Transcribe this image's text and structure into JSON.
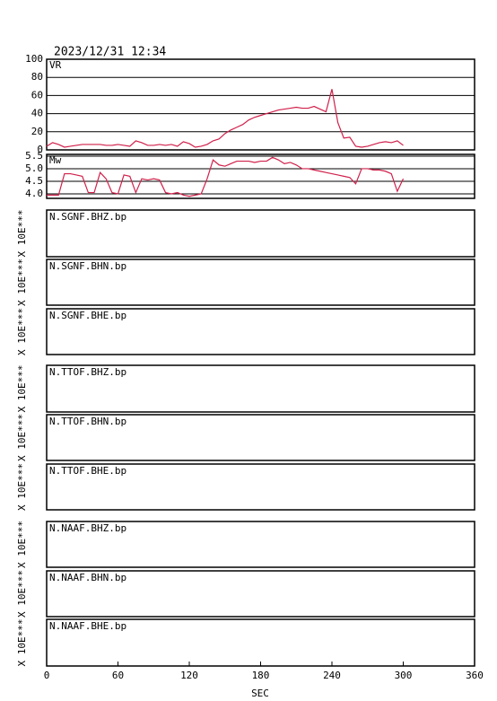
{
  "timestamp": "2023/12/31  12:34",
  "chart_data": [
    {
      "type": "line",
      "ylabel": "VR",
      "color": "#d0204a",
      "grid": true,
      "ylim": [
        0,
        100
      ],
      "yticks": [
        0,
        20,
        40,
        60,
        80,
        100
      ],
      "x": [
        0,
        5,
        10,
        15,
        20,
        25,
        30,
        35,
        40,
        45,
        50,
        55,
        60,
        65,
        70,
        75,
        80,
        85,
        90,
        95,
        100,
        105,
        110,
        115,
        120,
        125,
        130,
        135,
        140,
        145,
        150,
        155,
        160,
        165,
        170,
        175,
        180,
        185,
        190,
        195,
        200,
        205,
        210,
        215,
        220,
        225,
        230,
        235,
        240,
        245,
        250,
        255,
        260,
        265,
        270,
        275,
        280,
        285,
        290,
        295,
        300
      ],
      "values": [
        4,
        8,
        6,
        3,
        4,
        5,
        6,
        6,
        6,
        6,
        5,
        5,
        6,
        5,
        4,
        10,
        8,
        5,
        5,
        6,
        5,
        6,
        4,
        9,
        7,
        3,
        4,
        6,
        10,
        12,
        18,
        22,
        25,
        28,
        33,
        36,
        38,
        40,
        42,
        44,
        45,
        46,
        47,
        46,
        46,
        48,
        45,
        42,
        67,
        30,
        13,
        14,
        4,
        3,
        4,
        6,
        8,
        9,
        8,
        10,
        5
      ]
    },
    {
      "type": "line",
      "ylabel": "Mw",
      "color": "#d0204a",
      "grid": true,
      "ylim": [
        3.82,
        5.57
      ],
      "yticks": [
        {
          "value": 4,
          "label": "4.0"
        },
        4.5,
        {
          "value": 5,
          "label": "5.0"
        },
        5.5
      ],
      "x": [
        0,
        5,
        10,
        15,
        20,
        25,
        30,
        35,
        40,
        45,
        50,
        55,
        60,
        65,
        70,
        75,
        80,
        85,
        90,
        95,
        100,
        105,
        110,
        115,
        120,
        125,
        130,
        135,
        140,
        145,
        150,
        155,
        160,
        165,
        170,
        175,
        180,
        185,
        190,
        195,
        200,
        205,
        210,
        215,
        220,
        225,
        230,
        235,
        240,
        245,
        250,
        255,
        260,
        265,
        270,
        275,
        280,
        285,
        290,
        295,
        300
      ],
      "values": [
        3.95,
        3.95,
        3.95,
        4.8,
        4.8,
        4.75,
        4.7,
        4.05,
        4.05,
        4.85,
        4.6,
        4.05,
        4.0,
        4.75,
        4.7,
        4.05,
        4.6,
        4.55,
        4.6,
        4.55,
        4.05,
        4.0,
        4.05,
        3.95,
        3.9,
        3.95,
        4.0,
        4.6,
        5.35,
        5.15,
        5.1,
        5.2,
        5.3,
        5.3,
        5.3,
        5.25,
        5.3,
        5.3,
        5.45,
        5.35,
        5.2,
        5.25,
        5.15,
        5.0,
        5.0,
        4.95,
        4.9,
        4.85,
        4.8,
        4.75,
        4.7,
        4.65,
        4.4,
        5.0,
        5.0,
        4.95,
        4.95,
        4.9,
        4.8,
        4.1,
        4.6
      ]
    }
  ],
  "time_axis": {
    "xlim": [
      0,
      360
    ],
    "xticks": [
      0,
      60,
      120,
      180,
      240,
      300,
      360
    ],
    "xlabel": "SEC"
  },
  "waveforms": [
    {
      "label": "N.SGNF.BHZ.bp",
      "amplitude_label": "X 10E***"
    },
    {
      "label": "N.SGNF.BHN.bp",
      "amplitude_label": "X 10E***"
    },
    {
      "label": "N.SGNF.BHE.bp",
      "amplitude_label": "X 10E***"
    },
    {
      "label": "N.TTOF.BHZ.bp",
      "amplitude_label": "X 10E***"
    },
    {
      "label": "N.TTOF.BHN.bp",
      "amplitude_label": "X 10E***"
    },
    {
      "label": "N.TTOF.BHE.bp",
      "amplitude_label": "X 10E***"
    },
    {
      "label": "N.NAAF.BHZ.bp",
      "amplitude_label": "X 10E***"
    },
    {
      "label": "N.NAAF.BHN.bp",
      "amplitude_label": "X 10E***"
    },
    {
      "label": "N.NAAF.BHE.bp",
      "amplitude_label": "X 10E***"
    }
  ]
}
